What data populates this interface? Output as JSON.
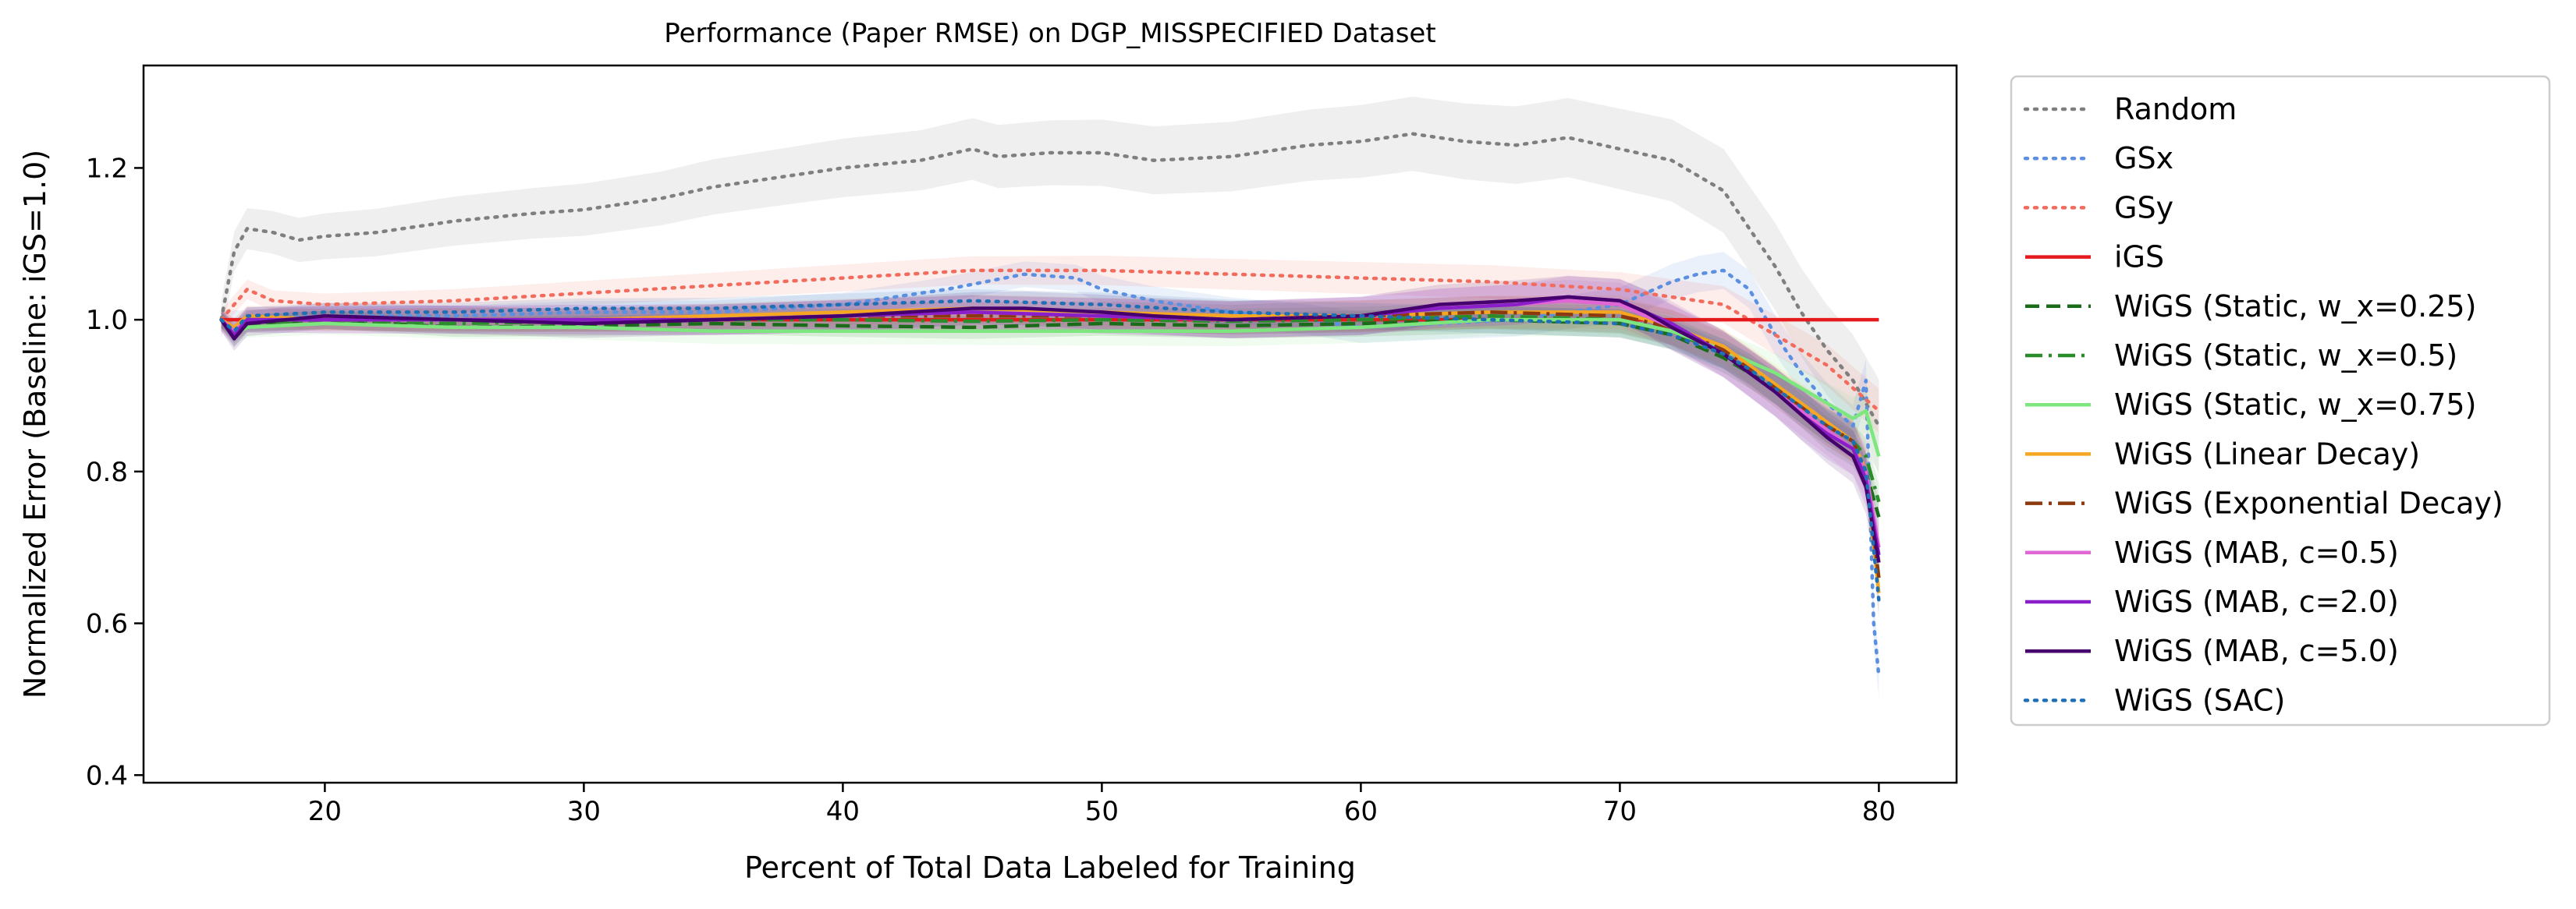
{
  "chart_data": {
    "type": "line",
    "title": "Performance (Paper RMSE) on DGP_MISSPECIFIED Dataset",
    "xlabel": "Percent of Total Data Labeled for Training",
    "ylabel": "Normalized Error (Baseline: iGS=1.0)",
    "xlim": [
      13,
      83
    ],
    "ylim": [
      0.39,
      1.335
    ],
    "xticks": [
      20,
      30,
      40,
      50,
      60,
      70,
      80
    ],
    "yticks": [
      0.4,
      0.6,
      0.8,
      1.0,
      1.2
    ],
    "xtick_labels": [
      "20",
      "30",
      "40",
      "50",
      "60",
      "70",
      "80"
    ],
    "ytick_labels": [
      "0.4",
      "0.6",
      "0.8",
      "1.0",
      "1.2"
    ],
    "grid": false,
    "legend_position": "outside-right",
    "series": [
      {
        "name": "Random",
        "color": "#7f7f7f",
        "dash": "dotted",
        "band": 0.025,
        "x": [
          16,
          16.5,
          17,
          18,
          19,
          20,
          22,
          25,
          28,
          30,
          33,
          35,
          38,
          40,
          43,
          45,
          46,
          48,
          50,
          52,
          55,
          58,
          60,
          62,
          64,
          66,
          68,
          70,
          72,
          74,
          75,
          76,
          77,
          78,
          79,
          80
        ],
        "y": [
          1.0,
          1.09,
          1.12,
          1.115,
          1.105,
          1.11,
          1.115,
          1.13,
          1.14,
          1.145,
          1.16,
          1.175,
          1.19,
          1.2,
          1.21,
          1.225,
          1.215,
          1.22,
          1.22,
          1.21,
          1.215,
          1.23,
          1.235,
          1.245,
          1.235,
          1.23,
          1.24,
          1.225,
          1.21,
          1.17,
          1.12,
          1.07,
          1.01,
          0.96,
          0.92,
          0.86
        ]
      },
      {
        "name": "GSx",
        "color": "#5b8fe0",
        "dash": "dotted",
        "band": 0.012,
        "x": [
          16,
          17,
          20,
          25,
          30,
          35,
          40,
          44,
          47,
          49,
          50,
          52,
          55,
          58,
          60,
          63,
          66,
          70,
          72,
          73,
          74,
          75,
          76,
          77,
          78,
          79,
          79.5,
          79.8,
          80
        ],
        "y": [
          1.0,
          1.0,
          1.005,
          1.005,
          1.01,
          1.01,
          1.02,
          1.04,
          1.06,
          1.055,
          1.04,
          1.025,
          1.01,
          1.0,
          0.99,
          0.995,
          1.0,
          1.02,
          1.05,
          1.06,
          1.065,
          1.04,
          0.98,
          0.93,
          0.89,
          0.86,
          0.92,
          0.6,
          0.53
        ]
      },
      {
        "name": "GSy",
        "color": "#f26c5e",
        "dash": "dotted",
        "band": 0.012,
        "x": [
          16,
          17,
          18,
          20,
          25,
          30,
          35,
          40,
          45,
          50,
          55,
          60,
          65,
          70,
          72,
          74,
          75,
          76,
          77,
          78,
          79,
          80
        ],
        "y": [
          1.0,
          1.04,
          1.025,
          1.02,
          1.025,
          1.035,
          1.045,
          1.055,
          1.065,
          1.065,
          1.06,
          1.055,
          1.05,
          1.04,
          1.03,
          1.02,
          1.0,
          0.98,
          0.96,
          0.94,
          0.91,
          0.88
        ]
      },
      {
        "name": "iGS",
        "color": "#e41a1c",
        "dash": "solid",
        "band": 0,
        "x": [
          16,
          80
        ],
        "y": [
          1.0,
          1.0
        ]
      },
      {
        "name": "WiGS (Static, w_x=0.25)",
        "color": "#1a6b1a",
        "dash": "dashed",
        "band": 0.01,
        "x": [
          16,
          16.5,
          17,
          20,
          25,
          30,
          35,
          40,
          45,
          50,
          55,
          60,
          65,
          70,
          72,
          74,
          75,
          76,
          77,
          78,
          79,
          79.5,
          80
        ],
        "y": [
          1.0,
          0.975,
          0.995,
          1.0,
          0.99,
          0.992,
          0.995,
          0.992,
          0.99,
          0.995,
          0.992,
          0.995,
          1.0,
          0.995,
          0.98,
          0.95,
          0.93,
          0.91,
          0.88,
          0.85,
          0.83,
          0.8,
          0.74
        ]
      },
      {
        "name": "WiGS (Static, w_x=0.5)",
        "color": "#2a8c2a",
        "dash": "dashdot",
        "band": 0.01,
        "x": [
          16,
          16.5,
          17,
          20,
          25,
          30,
          35,
          40,
          45,
          50,
          55,
          60,
          65,
          70,
          72,
          74,
          75,
          76,
          77,
          78,
          79,
          79.5,
          80
        ],
        "y": [
          1.0,
          0.98,
          0.995,
          1.0,
          0.995,
          0.998,
          1.0,
          1.0,
          0.998,
          1.0,
          0.998,
          1.0,
          1.005,
          1.0,
          0.985,
          0.955,
          0.935,
          0.91,
          0.885,
          0.86,
          0.84,
          0.82,
          0.76
        ]
      },
      {
        "name": "WiGS (Static, w_x=0.75)",
        "color": "#7ee67e",
        "dash": "solid",
        "band": 0.012,
        "x": [
          16,
          16.5,
          17,
          20,
          25,
          30,
          35,
          40,
          45,
          50,
          55,
          60,
          65,
          70,
          72,
          74,
          75,
          76,
          77,
          78,
          79,
          79.5,
          80
        ],
        "y": [
          1.0,
          0.98,
          0.99,
          0.995,
          0.99,
          0.99,
          0.985,
          0.985,
          0.985,
          0.985,
          0.985,
          0.99,
          1.0,
          1.0,
          0.985,
          0.96,
          0.945,
          0.93,
          0.91,
          0.89,
          0.87,
          0.88,
          0.82
        ]
      },
      {
        "name": "WiGS (Linear Decay)",
        "color": "#f5a623",
        "dash": "solid",
        "band": 0.012,
        "x": [
          16,
          16.5,
          17,
          20,
          25,
          30,
          35,
          40,
          45,
          50,
          55,
          60,
          65,
          70,
          72,
          74,
          75,
          76,
          77,
          78,
          79,
          79.5,
          80
        ],
        "y": [
          1.0,
          0.99,
          1.005,
          1.0,
          1.0,
          1.0,
          1.005,
          1.01,
          1.015,
          1.01,
          1.005,
          1.005,
          1.01,
          1.01,
          0.99,
          0.965,
          0.94,
          0.915,
          0.89,
          0.865,
          0.84,
          0.8,
          0.64
        ]
      },
      {
        "name": "WiGS (Exponential Decay)",
        "color": "#8b3a0f",
        "dash": "dashdot",
        "band": 0.012,
        "x": [
          16,
          16.5,
          17,
          20,
          25,
          30,
          35,
          40,
          45,
          50,
          55,
          60,
          65,
          70,
          72,
          74,
          75,
          76,
          77,
          78,
          79,
          79.5,
          80
        ],
        "y": [
          1.0,
          0.985,
          1.0,
          1.0,
          1.0,
          1.0,
          1.0,
          1.005,
          1.005,
          1.005,
          1.0,
          1.005,
          1.01,
          1.005,
          0.99,
          0.96,
          0.935,
          0.91,
          0.885,
          0.86,
          0.84,
          0.8,
          0.66
        ]
      },
      {
        "name": "WiGS (MAB, c=0.5)",
        "color": "#e066d6",
        "dash": "solid",
        "band": 0.015,
        "x": [
          16,
          16.5,
          17,
          20,
          25,
          30,
          35,
          40,
          45,
          50,
          55,
          60,
          63,
          66,
          68,
          70,
          72,
          74,
          75,
          76,
          77,
          78,
          79,
          79.5,
          80
        ],
        "y": [
          1.0,
          0.985,
          1.0,
          1.0,
          1.0,
          1.0,
          1.0,
          1.005,
          1.01,
          1.005,
          1.0,
          1.005,
          1.015,
          1.02,
          1.025,
          1.02,
          0.99,
          0.955,
          0.93,
          0.905,
          0.88,
          0.855,
          0.83,
          0.8,
          0.7
        ]
      },
      {
        "name": "WiGS (MAB, c=2.0)",
        "color": "#8a1fc9",
        "dash": "solid",
        "band": 0.015,
        "x": [
          16,
          16.5,
          17,
          20,
          25,
          30,
          35,
          40,
          45,
          50,
          55,
          60,
          63,
          66,
          68,
          70,
          72,
          74,
          75,
          76,
          77,
          78,
          79,
          79.5,
          80
        ],
        "y": [
          1.0,
          0.98,
          1.0,
          1.0,
          1.0,
          1.0,
          1.0,
          1.005,
          1.01,
          1.005,
          1.0,
          1.005,
          1.015,
          1.02,
          1.03,
          1.025,
          0.995,
          0.955,
          0.93,
          0.905,
          0.875,
          0.85,
          0.83,
          0.79,
          0.69
        ]
      },
      {
        "name": "WiGS (MAB, c=5.0)",
        "color": "#45006e",
        "dash": "solid",
        "band": 0.015,
        "x": [
          16,
          16.5,
          17,
          20,
          25,
          30,
          35,
          40,
          45,
          47,
          50,
          52,
          55,
          60,
          63,
          66,
          68,
          70,
          71,
          72,
          74,
          75,
          76,
          77,
          78,
          79,
          79.5,
          80
        ],
        "y": [
          1.0,
          0.975,
          0.995,
          1.005,
          1.0,
          0.995,
          1.0,
          1.005,
          1.015,
          1.015,
          1.01,
          1.005,
          1.0,
          1.005,
          1.02,
          1.025,
          1.03,
          1.025,
          1.01,
          0.99,
          0.955,
          0.93,
          0.905,
          0.875,
          0.845,
          0.82,
          0.78,
          0.68
        ]
      },
      {
        "name": "WiGS (SAC)",
        "color": "#1f6fb4",
        "dash": "dotted",
        "band": 0.01,
        "x": [
          16,
          16.5,
          17,
          20,
          25,
          30,
          35,
          40,
          45,
          50,
          55,
          60,
          65,
          70,
          72,
          74,
          75,
          76,
          77,
          78,
          79,
          79.5,
          80
        ],
        "y": [
          1.0,
          0.985,
          1.005,
          1.01,
          1.01,
          1.015,
          1.015,
          1.02,
          1.025,
          1.02,
          1.01,
          1.005,
          1.0,
          0.995,
          0.98,
          0.955,
          0.935,
          0.91,
          0.885,
          0.86,
          0.84,
          0.8,
          0.63
        ]
      }
    ]
  }
}
